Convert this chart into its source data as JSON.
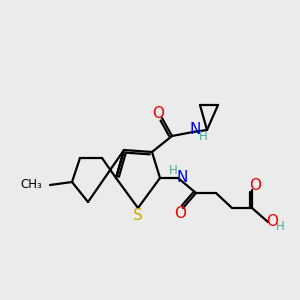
{
  "bg_color": "#ebebeb",
  "atom_colors": {
    "C": "#000000",
    "N": "#0000ee",
    "O": "#ee0000",
    "S": "#ccaa00",
    "H": "#4aaa9a"
  },
  "bond_color": "#000000",
  "bond_width": 1.6,
  "figsize": [
    3.0,
    3.0
  ],
  "dpi": 100,
  "label_fontsize": 10.5
}
